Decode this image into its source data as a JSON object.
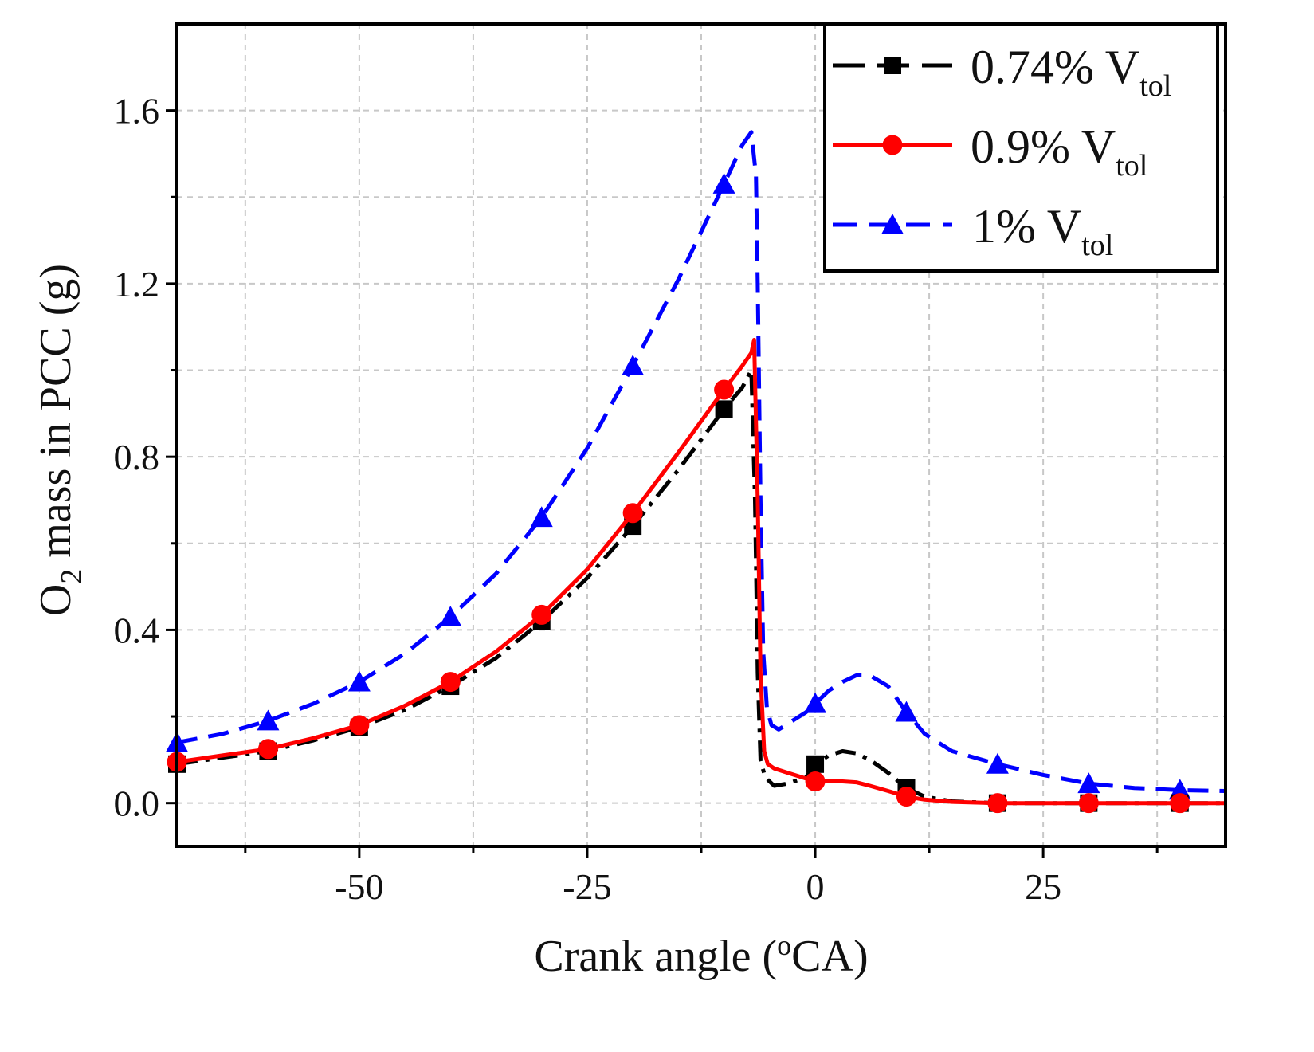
{
  "chart_data": {
    "type": "line",
    "title": "",
    "xlabel": "Crank angle (ºCA)",
    "xlabel_parts": {
      "prefix": "Crank angle (",
      "superscript": "o",
      "suffix": "CA)"
    },
    "ylabel": "O2 mass in PCC (g)",
    "ylabel_parts": {
      "prefix": "O",
      "subscript": "2",
      "suffix": " mass in PCC (g)"
    },
    "xlim": [
      -70,
      45
    ],
    "ylim": [
      -0.1,
      1.8
    ],
    "xticks": [
      -50,
      -25,
      0,
      25
    ],
    "xtick_labels": [
      "-50",
      "-25",
      "0",
      "25"
    ],
    "yticks": [
      0.0,
      0.4,
      0.8,
      1.2,
      1.6
    ],
    "ytick_labels": [
      "0.0",
      "0.4",
      "0.8",
      "1.2",
      "1.6"
    ],
    "grid": true,
    "legend_position": "top-right",
    "series": [
      {
        "name": "0.74% V_tol",
        "label_main": "0.74% V",
        "label_sub": "tol",
        "color": "#000000",
        "dash": "dash-dot",
        "marker": "square",
        "markers_x": [
          -70,
          -60,
          -50,
          -40,
          -30,
          -20,
          -10,
          0,
          10,
          20,
          30,
          40
        ],
        "markers_y": [
          0.09,
          0.12,
          0.175,
          0.27,
          0.42,
          0.64,
          0.91,
          0.09,
          0.035,
          0.0,
          0.0,
          0.0
        ],
        "x": [
          -70,
          -65,
          -60,
          -55,
          -50,
          -45,
          -40,
          -35,
          -30,
          -25,
          -20,
          -15,
          -10,
          -8,
          -7,
          -6.6,
          -6.3,
          -6.0,
          -5.5,
          -4.5,
          -3,
          -1,
          0,
          1.5,
          3,
          4.5,
          6,
          8,
          10,
          12,
          15,
          20,
          25,
          30,
          35,
          40,
          45
        ],
        "y": [
          0.09,
          0.105,
          0.12,
          0.145,
          0.175,
          0.215,
          0.27,
          0.335,
          0.42,
          0.52,
          0.64,
          0.77,
          0.91,
          0.96,
          1.0,
          0.7,
          0.3,
          0.1,
          0.06,
          0.04,
          0.045,
          0.06,
          0.09,
          0.11,
          0.12,
          0.115,
          0.1,
          0.07,
          0.035,
          0.015,
          0.004,
          0.0,
          0.0,
          0.0,
          0.0,
          0.0,
          0.0
        ]
      },
      {
        "name": "0.9% V_tol",
        "label_main": "0.9% V",
        "label_sub": "tol",
        "color": "#ff0000",
        "dash": "solid",
        "marker": "circle",
        "markers_x": [
          -70,
          -60,
          -50,
          -40,
          -30,
          -20,
          -10,
          0,
          10,
          20,
          30,
          40
        ],
        "markers_y": [
          0.095,
          0.125,
          0.18,
          0.28,
          0.435,
          0.67,
          0.955,
          0.05,
          0.015,
          0.0,
          0.0,
          0.0
        ],
        "x": [
          -70,
          -65,
          -60,
          -55,
          -50,
          -45,
          -40,
          -35,
          -30,
          -25,
          -20,
          -15,
          -10,
          -8,
          -7,
          -6.7,
          -6.3,
          -6.0,
          -5.6,
          -5.2,
          -4.5,
          -3,
          -1.5,
          0,
          1.5,
          3,
          4.5,
          6,
          8,
          10,
          12,
          15,
          20,
          25,
          30,
          35,
          40,
          45
        ],
        "y": [
          0.095,
          0.11,
          0.125,
          0.15,
          0.18,
          0.225,
          0.28,
          0.35,
          0.435,
          0.54,
          0.67,
          0.81,
          0.955,
          1.01,
          1.04,
          1.07,
          0.7,
          0.3,
          0.12,
          0.09,
          0.08,
          0.07,
          0.06,
          0.05,
          0.05,
          0.05,
          0.048,
          0.04,
          0.028,
          0.015,
          0.008,
          0.003,
          0.0,
          0.0,
          0.0,
          0.0,
          0.0,
          0.0
        ]
      },
      {
        "name": "1% V_tol",
        "label_main": "1% V",
        "label_sub": "tol",
        "color": "#0000ff",
        "dash": "dashed",
        "marker": "triangle",
        "markers_x": [
          -70,
          -60,
          -50,
          -40,
          -30,
          -20,
          -10,
          0,
          10,
          20,
          30,
          40
        ],
        "markers_y": [
          0.14,
          0.19,
          0.28,
          0.43,
          0.66,
          1.01,
          1.43,
          0.23,
          0.21,
          0.09,
          0.045,
          0.03
        ],
        "x": [
          -70,
          -65,
          -60,
          -55,
          -50,
          -45,
          -40,
          -35,
          -30,
          -25,
          -20,
          -15,
          -10,
          -8,
          -7,
          -6.5,
          -6.3,
          -6.0,
          -5.7,
          -5.3,
          -4.8,
          -4,
          -2.5,
          -1,
          0,
          1.5,
          3,
          4.5,
          6,
          8,
          10,
          12,
          15,
          20,
          25,
          30,
          35,
          40,
          45
        ],
        "y": [
          0.14,
          0.16,
          0.19,
          0.23,
          0.28,
          0.345,
          0.43,
          0.53,
          0.66,
          0.82,
          1.01,
          1.21,
          1.43,
          1.52,
          1.55,
          1.45,
          1.2,
          0.7,
          0.35,
          0.22,
          0.18,
          0.17,
          0.19,
          0.21,
          0.23,
          0.26,
          0.28,
          0.295,
          0.295,
          0.27,
          0.21,
          0.16,
          0.12,
          0.09,
          0.065,
          0.045,
          0.035,
          0.03,
          0.028
        ]
      }
    ]
  }
}
